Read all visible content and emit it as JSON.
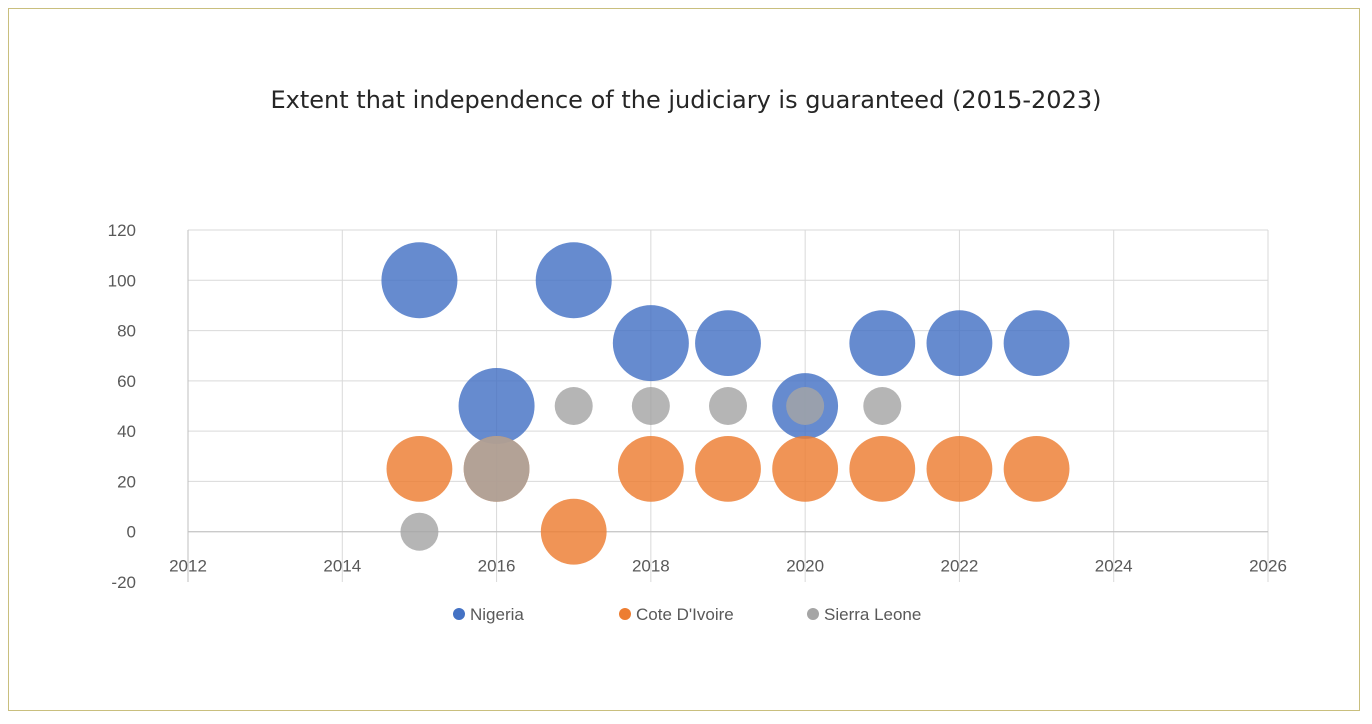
{
  "chart_data": {
    "type": "scatter",
    "title": "Extent that independence of the judiciary is guaranteed (2015-2023)",
    "xlabel": "",
    "ylabel": "",
    "xlim": [
      2012,
      2026
    ],
    "ylim": [
      -20,
      120
    ],
    "xticks": [
      "2012",
      "2014",
      "2016",
      "2018",
      "2020",
      "2022",
      "2024",
      "2026"
    ],
    "yticks": [
      "-20",
      "0",
      "20",
      "40",
      "60",
      "80",
      "100",
      "120"
    ],
    "grid": true,
    "legend_position": "bottom",
    "series": [
      {
        "name": "Nigeria",
        "color": "#4472c4",
        "points": [
          {
            "x": 2015,
            "y": 100,
            "size": 100
          },
          {
            "x": 2016,
            "y": 50,
            "size": 100
          },
          {
            "x": 2017,
            "y": 100,
            "size": 100
          },
          {
            "x": 2018,
            "y": 75,
            "size": 100
          },
          {
            "x": 2019,
            "y": 75,
            "size": 75
          },
          {
            "x": 2020,
            "y": 50,
            "size": 75
          },
          {
            "x": 2021,
            "y": 75,
            "size": 75
          },
          {
            "x": 2022,
            "y": 75,
            "size": 75
          },
          {
            "x": 2023,
            "y": 75,
            "size": 75
          }
        ]
      },
      {
        "name": "Cote D'Ivoire",
        "color": "#ed7d31",
        "points": [
          {
            "x": 2015,
            "y": 25,
            "size": 75
          },
          {
            "x": 2016,
            "y": 25,
            "size": 75
          },
          {
            "x": 2017,
            "y": 0,
            "size": 75
          },
          {
            "x": 2018,
            "y": 25,
            "size": 75
          },
          {
            "x": 2019,
            "y": 25,
            "size": 75
          },
          {
            "x": 2020,
            "y": 25,
            "size": 75
          },
          {
            "x": 2021,
            "y": 25,
            "size": 75
          },
          {
            "x": 2022,
            "y": 25,
            "size": 75
          },
          {
            "x": 2023,
            "y": 25,
            "size": 75
          }
        ]
      },
      {
        "name": "Sierra Leone",
        "color": "#a5a5a5",
        "points": [
          {
            "x": 2015,
            "y": 0,
            "size": 25
          },
          {
            "x": 2016,
            "y": 25,
            "size": 75
          },
          {
            "x": 2017,
            "y": 50,
            "size": 25
          },
          {
            "x": 2018,
            "y": 50,
            "size": 25
          },
          {
            "x": 2019,
            "y": 50,
            "size": 25
          },
          {
            "x": 2020,
            "y": 50,
            "size": 25
          },
          {
            "x": 2021,
            "y": 50,
            "size": 25
          }
        ]
      }
    ]
  }
}
